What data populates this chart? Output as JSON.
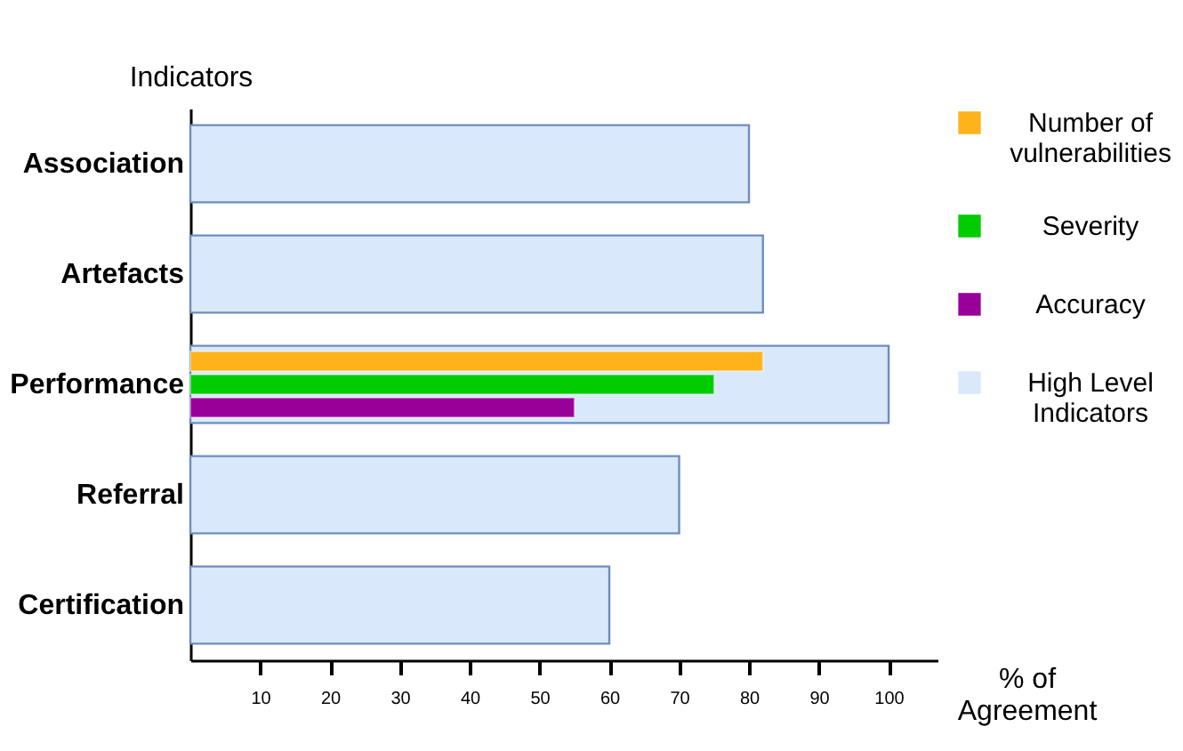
{
  "chart_data": {
    "type": "bar",
    "orientation": "horizontal",
    "xlabel": "% of Agreement",
    "ylabel": "Indicators",
    "categories": [
      "Association",
      "Artefacts",
      "Performance",
      "Referral",
      "Certification"
    ],
    "series": [
      {
        "name": "Number of vulnerabilities",
        "color": "#ffb31a",
        "values": [
          null,
          null,
          82,
          null,
          null
        ]
      },
      {
        "name": "Severity",
        "color": "#00cc00",
        "values": [
          null,
          null,
          75,
          null,
          null
        ]
      },
      {
        "name": "Accuracy",
        "color": "#990099",
        "values": [
          null,
          null,
          55,
          null,
          null
        ]
      },
      {
        "name": "High Level Indicators",
        "color": "#dae8fc",
        "values": [
          80,
          82,
          100,
          70,
          60
        ]
      }
    ],
    "xlim": [
      0,
      107
    ],
    "xticks": [
      10,
      20,
      30,
      40,
      50,
      60,
      70,
      80,
      90,
      100
    ],
    "grid": false,
    "legend": "right"
  }
}
